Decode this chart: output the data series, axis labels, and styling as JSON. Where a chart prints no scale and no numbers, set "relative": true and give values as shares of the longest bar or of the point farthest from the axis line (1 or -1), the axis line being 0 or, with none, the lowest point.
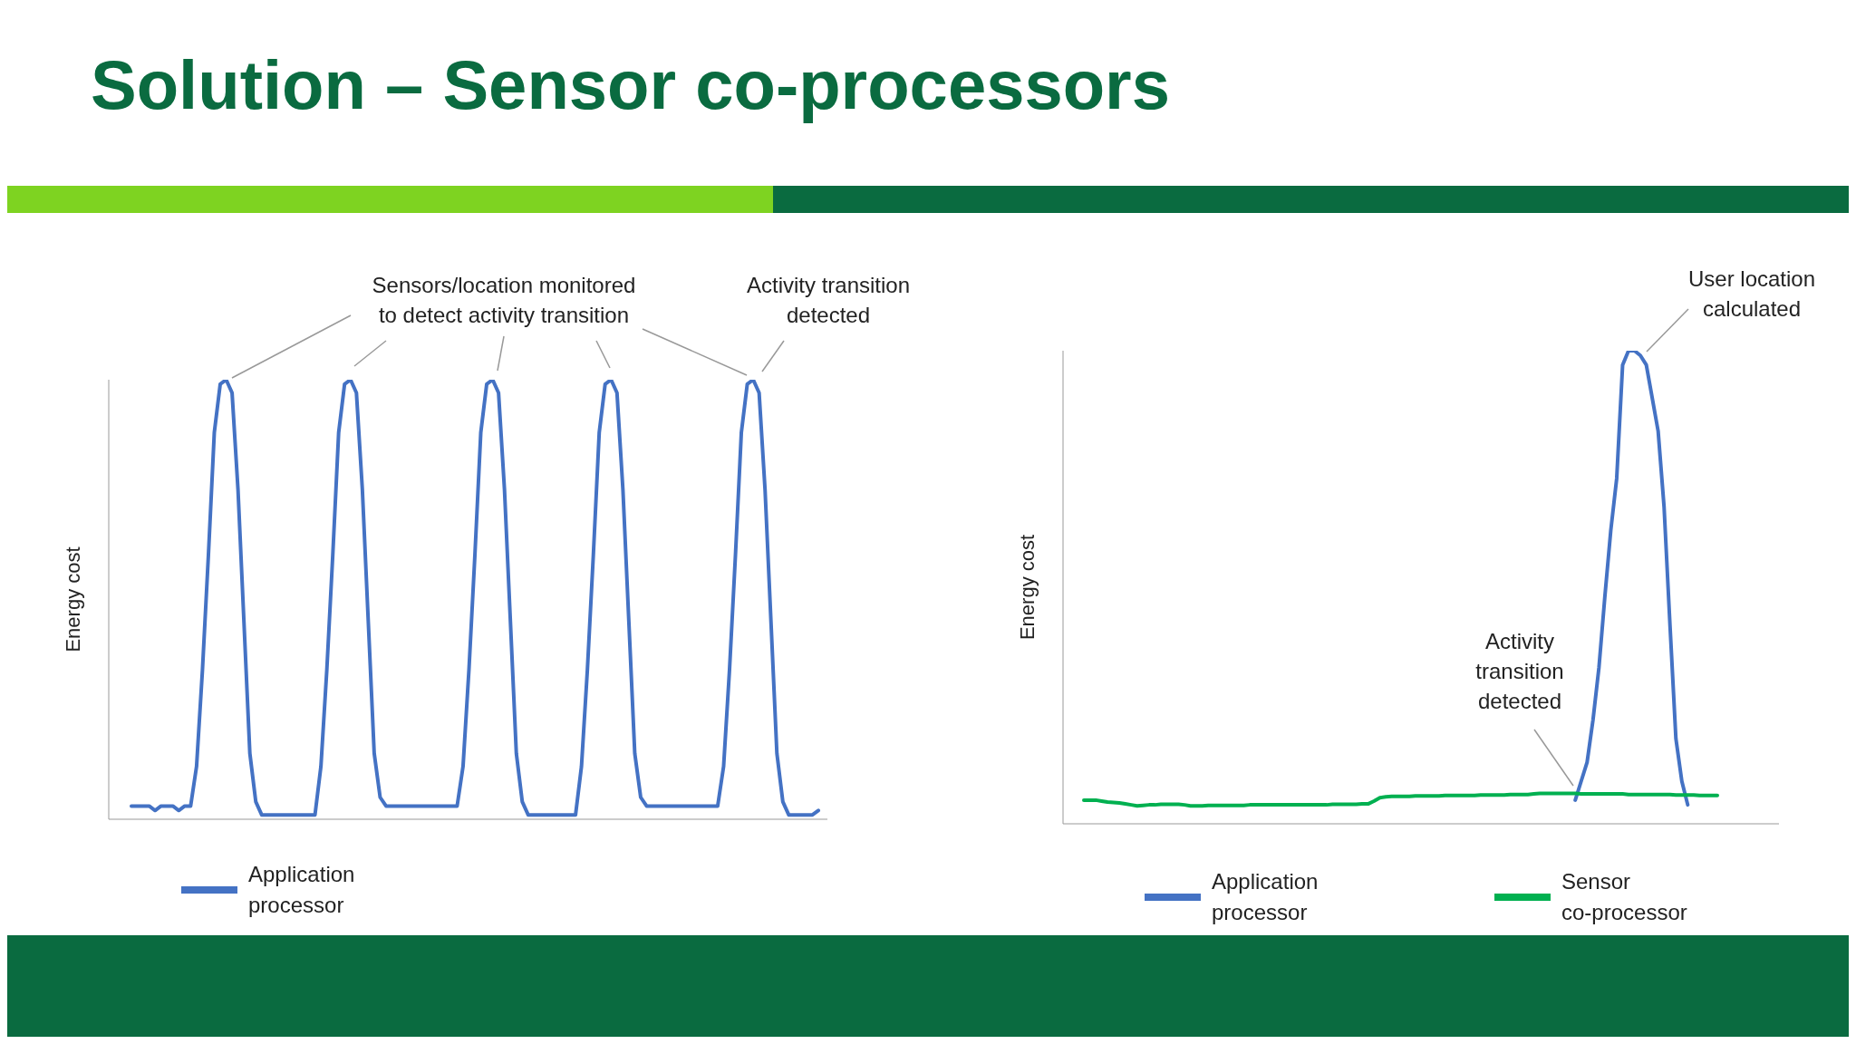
{
  "chart_data": [
    {
      "type": "line",
      "title": "Solution – Sensor co-processors",
      "ylabel": "Energy cost",
      "relative": true,
      "legend": "bottom left",
      "annotations": [
        "Sensors/location monitored to detect activity transition",
        "Activity transition detected"
      ],
      "categories": [
        null,
        null,
        null,
        null,
        null,
        null,
        null,
        null,
        null,
        null,
        null,
        null,
        null,
        null,
        null,
        null,
        null,
        null,
        null,
        null,
        null,
        null,
        null,
        null,
        null,
        null,
        null,
        null,
        null,
        null,
        null,
        null,
        null,
        null,
        null,
        null,
        null,
        null,
        null,
        null,
        null,
        null,
        null,
        null,
        null,
        null,
        null,
        null,
        null,
        null,
        null,
        null,
        null,
        null,
        null,
        null,
        null,
        null,
        null,
        null,
        null,
        null,
        null,
        null,
        null,
        null,
        null,
        null,
        null,
        null,
        null,
        null,
        null,
        null,
        null,
        null,
        null,
        null,
        null,
        null,
        null,
        null,
        null,
        null,
        null,
        null,
        null,
        null,
        null,
        null,
        null,
        null,
        null,
        null,
        null,
        null,
        null,
        null,
        null,
        null,
        null,
        null,
        null,
        null,
        null,
        null,
        null,
        null,
        null,
        null,
        null,
        null,
        null,
        null,
        null,
        null,
        null
      ],
      "series": [
        {
          "name": "Application processor",
          "color": "#4472c4",
          "values": [
            0.03,
            0.03,
            0.03,
            0.03,
            0.02,
            0.03,
            0.03,
            0.03,
            0.02,
            0.03,
            0.03,
            0.12,
            0.34,
            0.6,
            0.88,
            0.99,
            1,
            0.97,
            0.75,
            0.45,
            0.15,
            0.04,
            0.01,
            0.01,
            0.01,
            0.01,
            0.01,
            0.01,
            0.01,
            0.01,
            0.01,
            0.01,
            0.12,
            0.34,
            0.6,
            0.88,
            0.99,
            1,
            0.97,
            0.75,
            0.45,
            0.15,
            0.05,
            0.03,
            0.03,
            0.03,
            0.03,
            0.03,
            0.03,
            0.03,
            0.03,
            0.03,
            0.03,
            0.03,
            0.03,
            0.03,
            0.12,
            0.34,
            0.6,
            0.88,
            0.99,
            1,
            0.97,
            0.75,
            0.45,
            0.15,
            0.04,
            0.01,
            0.01,
            0.01,
            0.01,
            0.01,
            0.01,
            0.01,
            0.01,
            0.01,
            0.12,
            0.34,
            0.6,
            0.88,
            0.99,
            1,
            0.97,
            0.75,
            0.45,
            0.15,
            0.05,
            0.03,
            0.03,
            0.03,
            0.03,
            0.03,
            0.03,
            0.03,
            0.03,
            0.03,
            0.03,
            0.03,
            0.03,
            0.03,
            0.12,
            0.34,
            0.6,
            0.88,
            0.99,
            1,
            0.97,
            0.75,
            0.45,
            0.15,
            0.04,
            0.01,
            0.01,
            0.01,
            0.01,
            0.01,
            0.02
          ]
        }
      ]
    },
    {
      "type": "line",
      "ylabel": "Energy cost",
      "relative": true,
      "legend": "bottom",
      "annotations": [
        "User location calculated",
        "Activity transition detected"
      ],
      "categories": [
        null,
        null,
        null,
        null,
        null,
        null,
        null,
        null,
        null,
        null,
        null,
        null,
        null,
        null,
        null,
        null,
        null,
        null,
        null,
        null,
        null,
        null,
        null,
        null,
        null,
        null,
        null,
        null,
        null,
        null,
        null,
        null,
        null,
        null,
        null,
        null,
        null,
        null,
        null,
        null,
        null,
        null,
        null,
        null,
        null,
        null,
        null,
        null,
        null,
        null,
        null,
        null,
        null,
        null,
        null,
        null,
        null,
        null,
        null,
        null,
        null,
        null,
        null,
        null,
        null,
        null,
        null,
        null,
        null,
        null,
        null,
        null,
        null,
        null,
        null,
        null,
        null,
        null,
        null,
        null,
        null,
        null,
        null,
        null,
        null,
        null,
        null,
        null,
        null,
        null,
        null,
        null,
        null,
        null,
        null,
        null,
        null,
        null,
        null,
        null,
        null,
        null,
        null,
        null,
        null,
        null,
        null,
        null
      ],
      "series": [
        {
          "name": "Application processor",
          "color": "#4472c4",
          "values": [
            null,
            null,
            null,
            null,
            null,
            null,
            null,
            null,
            null,
            null,
            null,
            null,
            null,
            null,
            null,
            null,
            null,
            null,
            null,
            null,
            null,
            null,
            null,
            null,
            null,
            null,
            null,
            null,
            null,
            null,
            null,
            null,
            null,
            null,
            null,
            null,
            null,
            null,
            null,
            null,
            null,
            null,
            null,
            null,
            null,
            null,
            null,
            null,
            null,
            null,
            null,
            null,
            null,
            null,
            null,
            null,
            null,
            null,
            null,
            null,
            null,
            null,
            null,
            null,
            null,
            null,
            null,
            null,
            null,
            null,
            null,
            null,
            null,
            null,
            null,
            null,
            null,
            null,
            null,
            null,
            null,
            null,
            null,
            0.05,
            0.09,
            0.13,
            0.22,
            0.33,
            0.48,
            0.62,
            0.73,
            0.97,
            1,
            1,
            0.99,
            0.97,
            0.9,
            0.83,
            0.67,
            0.42,
            0.18,
            0.09,
            0.04,
            null,
            null,
            null,
            null,
            null
          ]
        },
        {
          "name": "Sensor co-processor",
          "color": "#00b050",
          "values": [
            0.05,
            0.05,
            0.05,
            0.048,
            0.046,
            0.045,
            0.044,
            0.042,
            0.04,
            0.038,
            0.039,
            0.04,
            0.04,
            0.041,
            0.041,
            0.041,
            0.041,
            0.04,
            0.038,
            0.038,
            0.038,
            0.039,
            0.039,
            0.039,
            0.039,
            0.039,
            0.039,
            0.039,
            0.04,
            0.04,
            0.04,
            0.04,
            0.04,
            0.04,
            0.04,
            0.04,
            0.04,
            0.04,
            0.04,
            0.04,
            0.04,
            0.04,
            0.041,
            0.041,
            0.041,
            0.041,
            0.041,
            0.042,
            0.042,
            0.048,
            0.055,
            0.057,
            0.058,
            0.058,
            0.058,
            0.058,
            0.059,
            0.059,
            0.059,
            0.059,
            0.059,
            0.06,
            0.06,
            0.06,
            0.06,
            0.06,
            0.06,
            0.061,
            0.061,
            0.061,
            0.061,
            0.061,
            0.062,
            0.062,
            0.062,
            0.062,
            0.063,
            0.064,
            0.064,
            0.064,
            0.064,
            0.064,
            0.064,
            0.064,
            0.063,
            0.063,
            0.063,
            0.063,
            0.063,
            0.063,
            0.063,
            0.063,
            0.062,
            0.062,
            0.062,
            0.062,
            0.062,
            0.062,
            0.062,
            0.062,
            0.061,
            0.061,
            0.061,
            0.061,
            0.06,
            0.06,
            0.06,
            0.06
          ]
        }
      ]
    }
  ]
}
